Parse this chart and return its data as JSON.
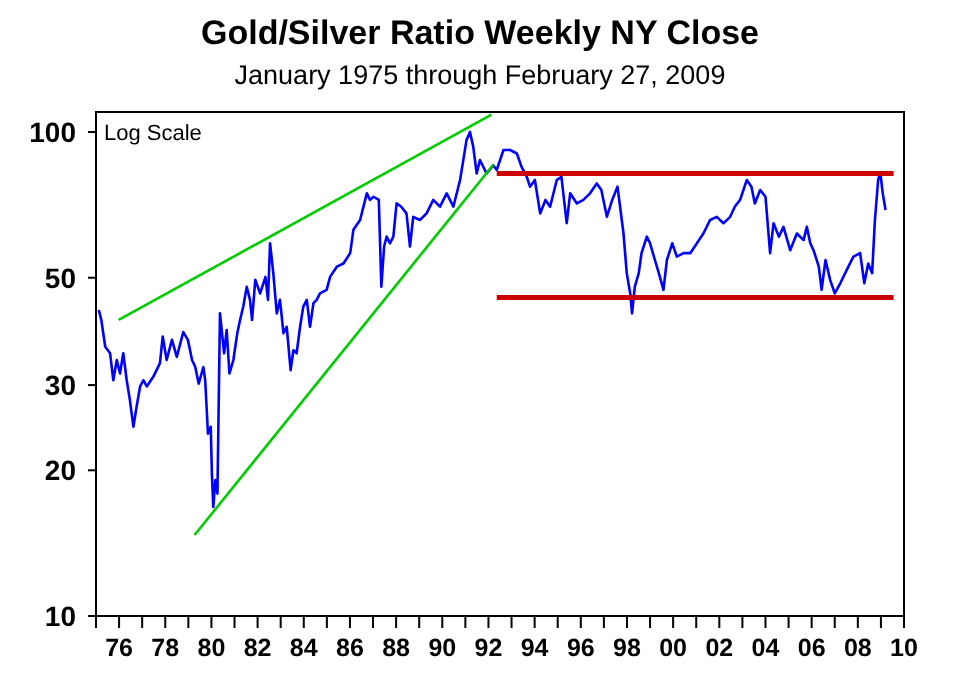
{
  "chart_data": {
    "type": "line",
    "title": "Gold/Silver Ratio Weekly NY Close",
    "subtitle": "January 1975 through February 27, 2009",
    "annotations": [
      "Log Scale"
    ],
    "log": true,
    "grid": false,
    "marker": "none",
    "xlim": [
      1975,
      2010
    ],
    "ylim": [
      10,
      110
    ],
    "yticks": [
      10,
      20,
      30,
      50,
      100
    ],
    "xticks": [
      {
        "value": 1975,
        "label": null
      },
      {
        "value": 1976,
        "label": "76"
      },
      {
        "value": 1977,
        "label": null
      },
      {
        "value": 1978,
        "label": "78"
      },
      {
        "value": 1979,
        "label": null
      },
      {
        "value": 1980,
        "label": "80"
      },
      {
        "value": 1981,
        "label": null
      },
      {
        "value": 1982,
        "label": "82"
      },
      {
        "value": 1983,
        "label": null
      },
      {
        "value": 1984,
        "label": "84"
      },
      {
        "value": 1985,
        "label": null
      },
      {
        "value": 1986,
        "label": "86"
      },
      {
        "value": 1987,
        "label": null
      },
      {
        "value": 1988,
        "label": "88"
      },
      {
        "value": 1989,
        "label": null
      },
      {
        "value": 1990,
        "label": "90"
      },
      {
        "value": 1991,
        "label": null
      },
      {
        "value": 1992,
        "label": "92"
      },
      {
        "value": 1993,
        "label": null
      },
      {
        "value": 1994,
        "label": "94"
      },
      {
        "value": 1995,
        "label": null
      },
      {
        "value": 1996,
        "label": "96"
      },
      {
        "value": 1997,
        "label": null
      },
      {
        "value": 1998,
        "label": "98"
      },
      {
        "value": 1999,
        "label": null
      },
      {
        "value": 2000,
        "label": "00"
      },
      {
        "value": 2001,
        "label": null
      },
      {
        "value": 2002,
        "label": "02"
      },
      {
        "value": 2003,
        "label": null
      },
      {
        "value": 2004,
        "label": "04"
      },
      {
        "value": 2005,
        "label": null
      },
      {
        "value": 2006,
        "label": "06"
      },
      {
        "value": 2007,
        "label": null
      },
      {
        "value": 2008,
        "label": "08"
      },
      {
        "value": 2009,
        "label": null
      },
      {
        "value": 2010,
        "label": "10"
      }
    ],
    "series": [
      {
        "color": "#0000ff",
        "x": [
          1975.12,
          1975.23,
          1975.4,
          1975.61,
          1975.75,
          1975.9,
          1976.04,
          1976.18,
          1976.33,
          1976.47,
          1976.62,
          1976.76,
          1976.91,
          1977.05,
          1977.2,
          1977.48,
          1977.77,
          1977.89,
          1978.06,
          1978.29,
          1978.5,
          1978.78,
          1978.98,
          1979.16,
          1979.3,
          1979.45,
          1979.65,
          1979.73,
          1979.85,
          1979.97,
          1980.02,
          1980.08,
          1980.17,
          1980.26,
          1980.37,
          1980.55,
          1980.66,
          1980.78,
          1980.95,
          1981.12,
          1981.24,
          1981.38,
          1981.53,
          1981.67,
          1981.76,
          1981.9,
          1982.11,
          1982.34,
          1982.45,
          1982.54,
          1982.68,
          1982.83,
          1982.97,
          1983.12,
          1983.26,
          1983.43,
          1983.55,
          1983.69,
          1983.84,
          1983.98,
          1984.13,
          1984.27,
          1984.42,
          1984.56,
          1984.7,
          1984.99,
          1985.14,
          1985.43,
          1985.72,
          1986.01,
          1986.15,
          1986.44,
          1986.73,
          1986.87,
          1987.02,
          1987.25,
          1987.36,
          1987.48,
          1987.59,
          1987.73,
          1987.88,
          1988.02,
          1988.22,
          1988.45,
          1988.6,
          1988.74,
          1989.03,
          1989.32,
          1989.61,
          1989.9,
          1990.19,
          1990.48,
          1990.77,
          1990.91,
          1991.05,
          1991.2,
          1991.34,
          1991.49,
          1991.63,
          1991.92,
          1992.21,
          1992.36,
          1992.65,
          1992.94,
          1993.23,
          1993.43,
          1993.66,
          1993.8,
          1994.01,
          1994.24,
          1994.47,
          1994.67,
          1994.96,
          1995.16,
          1995.39,
          1995.54,
          1995.83,
          1996.11,
          1996.4,
          1996.69,
          1996.89,
          1997.13,
          1997.36,
          1997.59,
          1997.85,
          1997.99,
          1998.14,
          1998.22,
          1998.34,
          1998.51,
          1998.63,
          1998.86,
          1999.0,
          1999.21,
          1999.38,
          1999.58,
          1999.73,
          1999.96,
          2000.16,
          2000.45,
          2000.74,
          2001.03,
          2001.31,
          2001.6,
          2001.89,
          2002.18,
          2002.47,
          2002.67,
          2002.9,
          2003.19,
          2003.39,
          2003.54,
          2003.77,
          2004.0,
          2004.2,
          2004.35,
          2004.58,
          2004.78,
          2005.07,
          2005.36,
          2005.65,
          2005.79,
          2005.94,
          2006.08,
          2006.31,
          2006.43,
          2006.6,
          2006.8,
          2007.0,
          2007.24,
          2007.52,
          2007.81,
          2008.1,
          2008.28,
          2008.45,
          2008.62,
          2008.74,
          2008.88,
          2008.97,
          2009.08,
          2009.2
        ],
        "values": [
          42.9,
          40.9,
          36.0,
          34.9,
          30.7,
          33.8,
          31.7,
          34.9,
          30.7,
          27.9,
          24.6,
          27.1,
          29.8,
          30.7,
          29.8,
          31.2,
          33.3,
          37.8,
          33.8,
          37.2,
          34.3,
          38.6,
          37.2,
          33.8,
          32.7,
          30.2,
          32.7,
          30.7,
          23.8,
          24.6,
          19.7,
          16.8,
          19.1,
          17.9,
          42.2,
          34.9,
          39.0,
          31.7,
          33.8,
          38.4,
          40.9,
          43.6,
          47.9,
          45.0,
          40.9,
          49.5,
          46.4,
          50.2,
          45.0,
          58.9,
          51.1,
          42.2,
          45.0,
          38.4,
          39.6,
          32.2,
          35.4,
          34.9,
          39.6,
          43.6,
          45.0,
          39.6,
          44.3,
          45.0,
          46.4,
          47.2,
          50.2,
          52.7,
          53.5,
          56.2,
          62.8,
          65.8,
          74.7,
          72.4,
          73.5,
          72.4,
          47.9,
          58.0,
          60.8,
          58.9,
          60.8,
          71.2,
          70.1,
          67.9,
          58.0,
          66.8,
          65.8,
          67.9,
          72.4,
          70.1,
          74.7,
          70.1,
          79.6,
          87.5,
          96.3,
          100,
          93.3,
          82.1,
          87.5,
          82.1,
          85.3,
          83.5,
          91.8,
          91.8,
          90.3,
          84.8,
          80.8,
          77.1,
          79.6,
          67.9,
          72.4,
          70.1,
          79.6,
          80.8,
          64.8,
          74.7,
          71.2,
          72.4,
          74.7,
          78.3,
          75.9,
          66.8,
          72.4,
          77.1,
          61.7,
          51.1,
          46.4,
          42.2,
          47.9,
          51.1,
          56.2,
          60.8,
          58.9,
          54.4,
          51.1,
          47.2,
          54.4,
          58.9,
          55.3,
          56.2,
          56.2,
          58.9,
          61.7,
          65.8,
          66.8,
          64.8,
          66.8,
          70.1,
          72.4,
          79.6,
          77.1,
          71.2,
          75.9,
          73.5,
          56.2,
          64.8,
          60.8,
          63.7,
          57.0,
          61.7,
          59.8,
          63.7,
          58.9,
          57.0,
          52.7,
          47.2,
          54.4,
          49.5,
          46.4,
          48.7,
          51.9,
          55.3,
          56.2,
          48.7,
          53.5,
          51.1,
          65.8,
          79.6,
          82.7,
          74.7,
          69.0
        ]
      },
      {
        "color": "#00cc00",
        "x": [
          1975.98,
          1992.13
        ],
        "values": [
          40.9,
          108.6
        ]
      },
      {
        "color": "#00cc00",
        "x": [
          1979.27,
          1992.21
        ],
        "values": [
          14.7,
          85.6
        ]
      },
      {
        "color": "#cc0000",
        "x": [
          1992.36,
          2009.55
        ],
        "values": [
          82.1,
          82.1
        ]
      },
      {
        "color": "#cc0000",
        "x": [
          1992.36,
          2009.55
        ],
        "values": [
          45.5,
          45.5
        ]
      }
    ]
  }
}
